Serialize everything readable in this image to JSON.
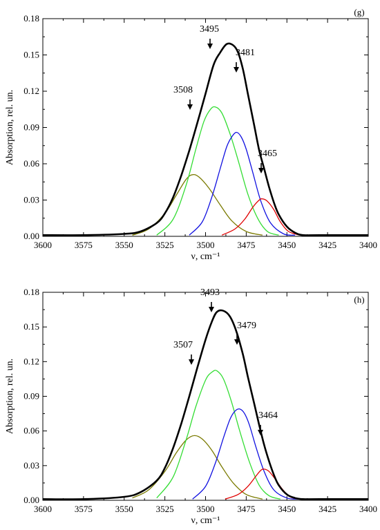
{
  "chart_data": [
    {
      "panel": "(g)",
      "type": "line",
      "xlabel": "ν, cm⁻¹",
      "ylabel": "Absorption, rel. un.",
      "xlim": [
        3600,
        3400
      ],
      "ylim": [
        0,
        0.18
      ],
      "xticks": [
        "3600",
        "3575",
        "3550",
        "3525",
        "3500",
        "3475",
        "3450",
        "3425",
        "3400"
      ],
      "yticks": [
        "0.00",
        "0.03",
        "0.06",
        "0.09",
        "0.12",
        "0.15",
        "0.18"
      ],
      "grid": false,
      "legend": "none",
      "peak_labels": [
        "3508",
        "3495",
        "3481",
        "3465"
      ],
      "series": [
        {
          "color": "#000000",
          "role": "envelope",
          "x": [
            3600,
            3575,
            3550,
            3540,
            3530,
            3525,
            3520,
            3515,
            3510,
            3505,
            3500,
            3495,
            3491,
            3487,
            3483,
            3480,
            3477,
            3474,
            3470,
            3467,
            3464,
            3461,
            3458,
            3455,
            3450,
            3445,
            3440,
            3430,
            3400
          ],
          "values": [
            0.001,
            0.001,
            0.002,
            0.004,
            0.011,
            0.019,
            0.032,
            0.05,
            0.071,
            0.094,
            0.118,
            0.142,
            0.152,
            0.159,
            0.158,
            0.152,
            0.138,
            0.118,
            0.091,
            0.071,
            0.056,
            0.041,
            0.028,
            0.018,
            0.008,
            0.003,
            0.001,
            0.001,
            0.001
          ]
        },
        {
          "color": "#7a7a00",
          "role": "component",
          "x": [
            3545,
            3535,
            3525,
            3518,
            3512,
            3508,
            3504,
            3498,
            3491,
            3484,
            3475,
            3465
          ],
          "values": [
            0.001,
            0.006,
            0.019,
            0.034,
            0.047,
            0.051,
            0.049,
            0.04,
            0.026,
            0.013,
            0.004,
            0.001
          ]
        },
        {
          "color": "#33dd33",
          "role": "component",
          "x": [
            3530,
            3520,
            3512,
            3506,
            3501,
            3497,
            3494,
            3490,
            3485,
            3480,
            3474,
            3468,
            3462,
            3455
          ],
          "values": [
            0.001,
            0.014,
            0.042,
            0.072,
            0.095,
            0.105,
            0.107,
            0.102,
            0.085,
            0.063,
            0.035,
            0.015,
            0.004,
            0.001
          ]
        },
        {
          "color": "#1010e0",
          "role": "component",
          "x": [
            3510,
            3502,
            3496,
            3491,
            3487,
            3484,
            3481,
            3478,
            3475,
            3471,
            3466,
            3460,
            3452,
            3445
          ],
          "values": [
            0.001,
            0.012,
            0.033,
            0.056,
            0.074,
            0.082,
            0.086,
            0.082,
            0.072,
            0.053,
            0.029,
            0.011,
            0.002,
            0.001
          ]
        },
        {
          "color": "#e00000",
          "role": "component",
          "x": [
            3490,
            3482,
            3476,
            3471,
            3467,
            3465,
            3462,
            3458,
            3454,
            3449,
            3442
          ],
          "values": [
            0.001,
            0.006,
            0.014,
            0.024,
            0.03,
            0.031,
            0.029,
            0.022,
            0.012,
            0.004,
            0.001
          ]
        }
      ]
    },
    {
      "panel": "(h)",
      "type": "line",
      "xlabel": "ν, cm⁻¹",
      "ylabel": "Absorption, rel. un.",
      "xlim": [
        3600,
        3400
      ],
      "ylim": [
        0,
        0.18
      ],
      "xticks": [
        "3600",
        "3575",
        "3550",
        "3525",
        "3500",
        "3475",
        "3450",
        "3425",
        "3400"
      ],
      "yticks": [
        "0.00",
        "0.03",
        "0.06",
        "0.09",
        "0.12",
        "0.15",
        "0.18"
      ],
      "grid": false,
      "legend": "none",
      "peak_labels": [
        "3507",
        "3493",
        "3479",
        "3464"
      ],
      "series": [
        {
          "color": "#000000",
          "role": "envelope",
          "x": [
            3600,
            3575,
            3550,
            3540,
            3530,
            3525,
            3520,
            3515,
            3510,
            3505,
            3500,
            3496,
            3493,
            3489,
            3485,
            3481,
            3477,
            3474,
            3470,
            3467,
            3464,
            3461,
            3458,
            3455,
            3450,
            3445,
            3440,
            3430,
            3400
          ],
          "values": [
            0.001,
            0.001,
            0.003,
            0.007,
            0.017,
            0.028,
            0.045,
            0.066,
            0.09,
            0.115,
            0.139,
            0.155,
            0.163,
            0.164,
            0.159,
            0.146,
            0.126,
            0.107,
            0.083,
            0.065,
            0.048,
            0.034,
            0.022,
            0.013,
            0.005,
            0.002,
            0.001,
            0.001,
            0.001
          ]
        },
        {
          "color": "#7a7a00",
          "role": "component",
          "x": [
            3545,
            3535,
            3525,
            3518,
            3512,
            3507,
            3502,
            3496,
            3490,
            3483,
            3475,
            3465
          ],
          "values": [
            0.002,
            0.009,
            0.025,
            0.041,
            0.052,
            0.056,
            0.053,
            0.043,
            0.029,
            0.015,
            0.005,
            0.001
          ]
        },
        {
          "color": "#33dd33",
          "role": "component",
          "x": [
            3530,
            3520,
            3512,
            3506,
            3500,
            3496,
            3493,
            3489,
            3484,
            3479,
            3473,
            3467,
            3461,
            3454
          ],
          "values": [
            0.002,
            0.02,
            0.052,
            0.081,
            0.104,
            0.111,
            0.112,
            0.105,
            0.085,
            0.06,
            0.033,
            0.013,
            0.004,
            0.001
          ]
        },
        {
          "color": "#1010e0",
          "role": "component",
          "x": [
            3508,
            3500,
            3494,
            3489,
            3485,
            3482,
            3479,
            3476,
            3473,
            3469,
            3464,
            3458,
            3450,
            3443
          ],
          "values": [
            0.001,
            0.012,
            0.032,
            0.054,
            0.07,
            0.077,
            0.079,
            0.075,
            0.065,
            0.046,
            0.025,
            0.009,
            0.002,
            0.001
          ]
        },
        {
          "color": "#e00000",
          "role": "component",
          "x": [
            3488,
            3480,
            3474,
            3469,
            3466,
            3464,
            3461,
            3457,
            3453,
            3448,
            3442
          ],
          "values": [
            0.001,
            0.005,
            0.012,
            0.021,
            0.026,
            0.027,
            0.025,
            0.018,
            0.01,
            0.003,
            0.001
          ]
        }
      ]
    }
  ]
}
